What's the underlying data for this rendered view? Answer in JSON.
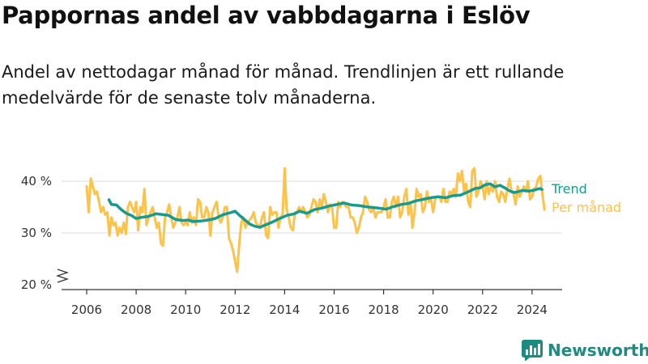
{
  "title": "Pappornas andel av vabbdagarna i Eslöv",
  "subtitle": "Andel av nettodagar månad för månad. Trendlinjen är ett rullande medelvärde för de senaste tolv månaderna.",
  "brand": "Newsworthy",
  "colors": {
    "trend": "#1a9a8e",
    "monthly": "#fbc34a",
    "axis": "#333333",
    "grid": "#dddddd",
    "brand": "#1f8a80"
  },
  "chart_data": {
    "type": "line",
    "title": "Pappornas andel av vabbdagarna i Eslöv",
    "xlabel": "",
    "ylabel": "",
    "ylim": [
      20,
      43
    ],
    "xlim": [
      2005.5,
      2024.8
    ],
    "y_ticks": [
      20,
      30,
      40
    ],
    "y_tick_labels": [
      "20 %",
      "30 %",
      "40 %"
    ],
    "x_ticks": [
      "2006",
      "2008",
      "2010",
      "2012",
      "2014",
      "2016",
      "2018",
      "2020",
      "2022",
      "2024"
    ],
    "axis_break": true,
    "grid": true,
    "legend": "right, labels at line ends",
    "series": [
      {
        "name": "Per månad",
        "color": "#fbc34a",
        "x_start": "2006-01",
        "step": "month",
        "values": [
          39,
          34,
          40.5,
          39,
          37.5,
          38,
          36,
          34,
          35,
          33.5,
          34,
          29.5,
          33,
          31.5,
          32,
          29.5,
          31,
          30,
          32,
          29.8,
          35,
          36,
          35,
          34,
          36,
          30.5,
          35,
          34,
          38.5,
          31.5,
          33,
          34,
          35,
          33,
          31,
          32,
          28,
          27.5,
          33,
          34,
          35.5,
          33,
          31,
          32,
          33,
          35,
          32,
          31.5,
          32,
          31.5,
          34,
          32,
          33,
          31.5,
          36.5,
          36,
          33,
          33,
          35,
          34,
          29.5,
          34,
          35,
          36,
          33,
          32,
          33,
          35,
          35,
          29,
          28,
          26.5,
          24.5,
          22.5,
          28,
          32,
          33,
          31,
          32,
          32.5,
          33,
          34,
          32,
          31.5,
          31,
          33,
          34,
          29.5,
          29,
          35,
          33.5,
          34,
          34,
          31,
          33,
          33.5,
          42.5,
          34.5,
          33,
          31,
          30.5,
          34,
          34,
          35,
          34,
          35,
          34,
          33,
          33.5,
          35,
          36.5,
          36,
          34,
          36.5,
          35,
          37.5,
          36,
          34,
          35.5,
          35,
          31,
          31,
          36,
          35,
          36,
          35.5,
          35,
          35,
          33,
          33,
          32,
          30,
          31,
          33,
          34,
          37,
          36,
          34.5,
          34,
          35,
          33,
          34,
          34,
          34,
          35,
          36.5,
          33,
          33,
          36,
          37,
          35,
          37,
          33,
          34,
          37,
          38.5,
          33.5,
          36,
          31,
          34,
          38.5,
          37,
          37.5,
          34,
          35,
          38,
          36,
          36.5,
          34,
          36.5,
          37,
          37,
          36,
          38.5,
          36,
          36,
          38,
          37.5,
          38.5,
          37,
          41.5,
          40,
          42,
          38,
          39.5,
          36,
          35,
          42,
          42.5,
          37,
          38,
          40,
          39,
          36.5,
          40,
          37.5,
          39,
          38,
          40,
          37,
          36,
          38,
          37.5,
          36,
          38.5,
          40.5,
          38,
          37.5,
          35.5,
          39,
          37,
          38,
          39,
          38,
          40,
          36.5,
          37,
          38.5,
          39,
          40.5,
          41,
          37.5,
          34.5
        ]
      },
      {
        "name": "Trend",
        "color": "#1a9a8e",
        "points": [
          [
            2006.9,
            36.4
          ],
          [
            2007.0,
            35.5
          ],
          [
            2007.2,
            35.4
          ],
          [
            2007.4,
            34.5
          ],
          [
            2007.6,
            33.8
          ],
          [
            2007.8,
            33.4
          ],
          [
            2008.0,
            32.8
          ],
          [
            2008.2,
            33.0
          ],
          [
            2008.5,
            33.2
          ],
          [
            2008.8,
            33.7
          ],
          [
            2009.0,
            33.6
          ],
          [
            2009.3,
            33.4
          ],
          [
            2009.6,
            32.6
          ],
          [
            2009.9,
            32.4
          ],
          [
            2010.1,
            32.5
          ],
          [
            2010.3,
            32.2
          ],
          [
            2010.6,
            32.3
          ],
          [
            2010.9,
            32.5
          ],
          [
            2011.2,
            32.8
          ],
          [
            2011.5,
            33.5
          ],
          [
            2011.8,
            33.9
          ],
          [
            2012.0,
            34.2
          ],
          [
            2012.2,
            33.3
          ],
          [
            2012.4,
            32.5
          ],
          [
            2012.6,
            31.7
          ],
          [
            2012.8,
            31.3
          ],
          [
            2013.0,
            31.1
          ],
          [
            2013.2,
            31.5
          ],
          [
            2013.5,
            32.1
          ],
          [
            2013.8,
            32.8
          ],
          [
            2014.1,
            33.4
          ],
          [
            2014.4,
            33.7
          ],
          [
            2014.6,
            34.2
          ],
          [
            2014.9,
            33.8
          ],
          [
            2015.2,
            34.5
          ],
          [
            2015.5,
            34.8
          ],
          [
            2015.8,
            35.2
          ],
          [
            2016.1,
            35.5
          ],
          [
            2016.4,
            35.8
          ],
          [
            2016.7,
            35.4
          ],
          [
            2017.0,
            35.3
          ],
          [
            2017.4,
            35.0
          ],
          [
            2017.8,
            34.8
          ],
          [
            2018.1,
            34.6
          ],
          [
            2018.4,
            35.1
          ],
          [
            2018.7,
            35.5
          ],
          [
            2019.0,
            35.7
          ],
          [
            2019.3,
            36.2
          ],
          [
            2019.6,
            36.5
          ],
          [
            2019.9,
            36.8
          ],
          [
            2020.2,
            37.0
          ],
          [
            2020.5,
            36.8
          ],
          [
            2020.8,
            37.2
          ],
          [
            2021.1,
            37.3
          ],
          [
            2021.4,
            37.9
          ],
          [
            2021.7,
            38.6
          ],
          [
            2021.9,
            38.7
          ],
          [
            2022.1,
            39.3
          ],
          [
            2022.3,
            39.5
          ],
          [
            2022.5,
            38.9
          ],
          [
            2022.7,
            39.2
          ],
          [
            2022.9,
            38.7
          ],
          [
            2023.1,
            38.1
          ],
          [
            2023.3,
            37.8
          ],
          [
            2023.6,
            38.2
          ],
          [
            2023.9,
            38.1
          ],
          [
            2024.1,
            38.3
          ],
          [
            2024.3,
            38.6
          ],
          [
            2024.4,
            38.4
          ]
        ]
      }
    ]
  }
}
